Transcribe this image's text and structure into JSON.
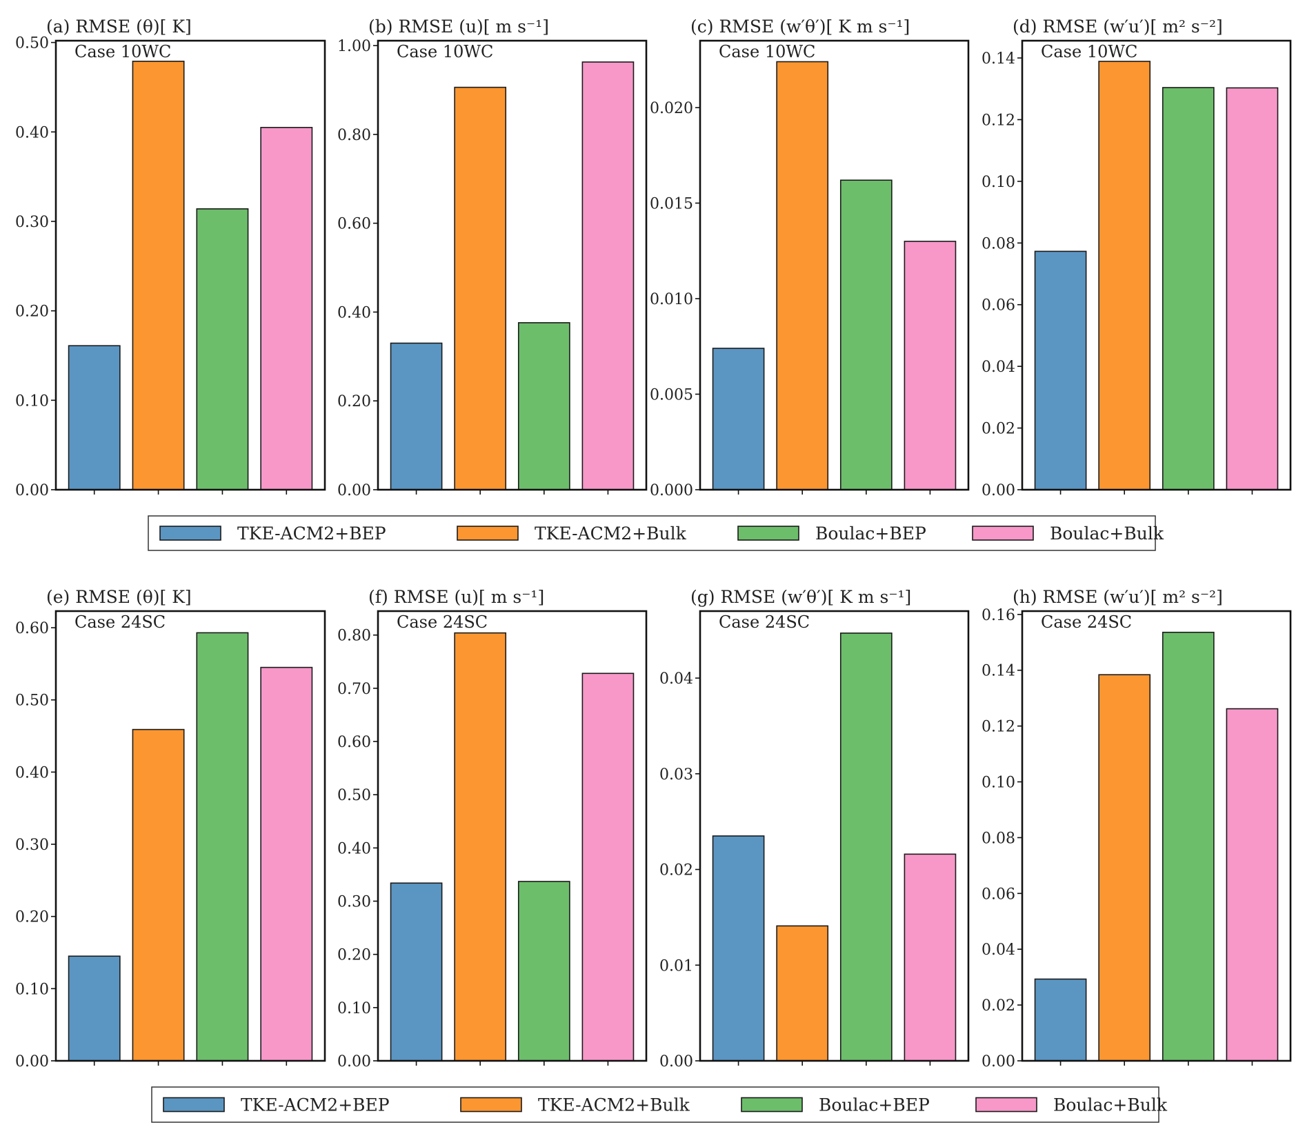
{
  "legend": {
    "items": [
      {
        "label": "TKE-ACM2+BEP",
        "color": "#5b96c3"
      },
      {
        "label": "TKE-ACM2+Bulk",
        "color": "#fc9630"
      },
      {
        "label": "Boulac+BEP",
        "color": "#6dbe6b"
      },
      {
        "label": "Boulac+Bulk",
        "color": "#f798c9"
      }
    ]
  },
  "chart_data": [
    {
      "type": "bar",
      "panel": "a",
      "title": "(a) RMSE (θ)[ K]",
      "case_label": "Case 10WC",
      "categories": [
        "TKE-ACM2+BEP",
        "TKE-ACM2+Bulk",
        "Boulac+BEP",
        "Boulac+Bulk"
      ],
      "values": [
        0.161,
        0.479,
        0.314,
        0.405
      ],
      "ylim": [
        0,
        0.502
      ],
      "yticks": [
        0.0,
        0.1,
        0.2,
        0.3,
        0.4,
        0.5
      ],
      "ytick_labels": [
        "0.00",
        "0.10",
        "0.20",
        "0.30",
        "0.40",
        "0.50"
      ],
      "xlabel": "",
      "ylabel": ""
    },
    {
      "type": "bar",
      "panel": "b",
      "title": "(b) RMSE (u)[ m s⁻¹]",
      "case_label": "Case 10WC",
      "categories": [
        "TKE-ACM2+BEP",
        "TKE-ACM2+Bulk",
        "Boulac+BEP",
        "Boulac+Bulk"
      ],
      "values": [
        0.33,
        0.906,
        0.376,
        0.963
      ],
      "ylim": [
        0,
        1.011
      ],
      "yticks": [
        0.0,
        0.2,
        0.4,
        0.6,
        0.8,
        1.0
      ],
      "ytick_labels": [
        "0.00",
        "0.20",
        "0.40",
        "0.60",
        "0.80",
        "1.00"
      ],
      "xlabel": "",
      "ylabel": ""
    },
    {
      "type": "bar",
      "panel": "c",
      "title": "(c) RMSE (w′θ′)[ K m s⁻¹]",
      "case_label": "Case 10WC",
      "categories": [
        "TKE-ACM2+BEP",
        "TKE-ACM2+Bulk",
        "Boulac+BEP",
        "Boulac+Bulk"
      ],
      "values": [
        0.0074,
        0.0224,
        0.0162,
        0.013
      ],
      "ylim": [
        0,
        0.0235
      ],
      "yticks": [
        0.0,
        0.005,
        0.01,
        0.015,
        0.02
      ],
      "ytick_labels": [
        "0.000",
        "0.005",
        "0.010",
        "0.015",
        "0.020"
      ],
      "xlabel": "",
      "ylabel": ""
    },
    {
      "type": "bar",
      "panel": "d",
      "title": "(d) RMSE (w′u′)[ m² s⁻²]",
      "case_label": "Case 10WC",
      "categories": [
        "TKE-ACM2+BEP",
        "TKE-ACM2+Bulk",
        "Boulac+BEP",
        "Boulac+Bulk"
      ],
      "values": [
        0.0773,
        0.1389,
        0.1304,
        0.1303
      ],
      "ylim": [
        0,
        0.1456
      ],
      "yticks": [
        0.0,
        0.02,
        0.04,
        0.06,
        0.08,
        0.1,
        0.12,
        0.14
      ],
      "ytick_labels": [
        "0.00",
        "0.02",
        "0.04",
        "0.06",
        "0.08",
        "0.10",
        "0.12",
        "0.14"
      ],
      "xlabel": "",
      "ylabel": ""
    },
    {
      "type": "bar",
      "panel": "e",
      "title": "(e) RMSE (θ)[ K]",
      "case_label": "Case 24SC",
      "categories": [
        "TKE-ACM2+BEP",
        "TKE-ACM2+Bulk",
        "Boulac+BEP",
        "Boulac+Bulk"
      ],
      "values": [
        0.145,
        0.459,
        0.593,
        0.545
      ],
      "ylim": [
        0,
        0.623
      ],
      "yticks": [
        0.0,
        0.1,
        0.2,
        0.3,
        0.4,
        0.5,
        0.6
      ],
      "ytick_labels": [
        "0.00",
        "0.10",
        "0.20",
        "0.30",
        "0.40",
        "0.50",
        "0.60"
      ],
      "xlabel": "",
      "ylabel": ""
    },
    {
      "type": "bar",
      "panel": "f",
      "title": "(f) RMSE (u)[ m s⁻¹]",
      "case_label": "Case 24SC",
      "categories": [
        "TKE-ACM2+BEP",
        "TKE-ACM2+Bulk",
        "Boulac+BEP",
        "Boulac+Bulk"
      ],
      "values": [
        0.334,
        0.804,
        0.337,
        0.728
      ],
      "ylim": [
        0,
        0.845
      ],
      "yticks": [
        0.0,
        0.1,
        0.2,
        0.3,
        0.4,
        0.5,
        0.6,
        0.7,
        0.8
      ],
      "ytick_labels": [
        "0.00",
        "0.10",
        "0.20",
        "0.30",
        "0.40",
        "0.50",
        "0.60",
        "0.70",
        "0.80"
      ],
      "xlabel": "",
      "ylabel": ""
    },
    {
      "type": "bar",
      "panel": "g",
      "title": "(g) RMSE (w′θ′)[ K m s⁻¹]",
      "case_label": "Case 24SC",
      "categories": [
        "TKE-ACM2+BEP",
        "TKE-ACM2+Bulk",
        "Boulac+BEP",
        "Boulac+Bulk"
      ],
      "values": [
        0.0235,
        0.0141,
        0.0447,
        0.0216
      ],
      "ylim": [
        0,
        0.047
      ],
      "yticks": [
        0.0,
        0.01,
        0.02,
        0.03,
        0.04
      ],
      "ytick_labels": [
        "0.00",
        "0.01",
        "0.02",
        "0.03",
        "0.04"
      ],
      "xlabel": "",
      "ylabel": ""
    },
    {
      "type": "bar",
      "panel": "h",
      "title": "(h) RMSE (w′u′)[ m² s⁻²]",
      "case_label": "Case 24SC",
      "categories": [
        "TKE-ACM2+BEP",
        "TKE-ACM2+Bulk",
        "Boulac+BEP",
        "Boulac+Bulk"
      ],
      "values": [
        0.0293,
        0.1384,
        0.1536,
        0.1262
      ],
      "ylim": [
        0,
        0.1612
      ],
      "yticks": [
        0.0,
        0.02,
        0.04,
        0.06,
        0.08,
        0.1,
        0.12,
        0.14,
        0.16
      ],
      "ytick_labels": [
        "0.00",
        "0.02",
        "0.04",
        "0.06",
        "0.08",
        "0.10",
        "0.12",
        "0.14",
        "0.16"
      ],
      "xlabel": "",
      "ylabel": ""
    }
  ]
}
